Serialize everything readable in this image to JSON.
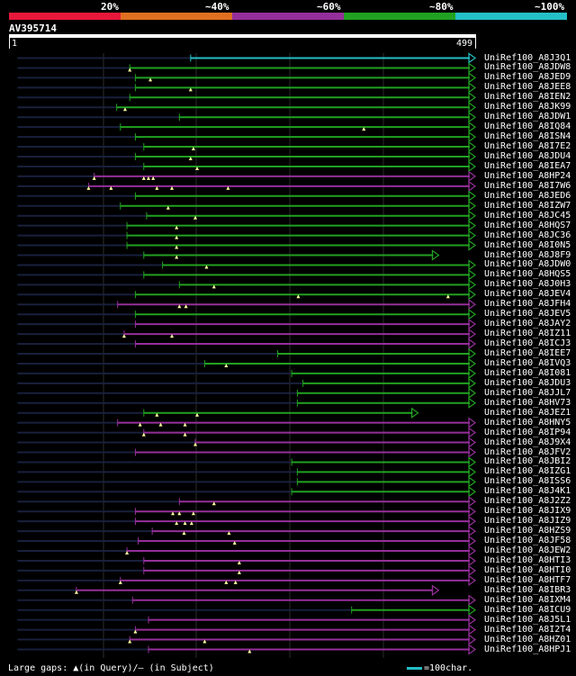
{
  "identity_scale": [
    {
      "label": "20%",
      "color": "#e8183a"
    },
    {
      "label": "~40%",
      "color": "#e07020"
    },
    {
      "label": "~60%",
      "color": "#952f9a"
    },
    {
      "label": "~80%",
      "color": "#21a121"
    },
    {
      "label": "~100%",
      "color": "#24bfc7"
    }
  ],
  "query": {
    "id": "AV395714",
    "start": "1",
    "end": "499"
  },
  "colors": {
    "cyan": "#24bfc7",
    "green": "#21a121",
    "purple": "#952f9a",
    "faint": "#18203c",
    "grid": "#2d2d2d"
  },
  "legend": {
    "text": "Large gaps: ▲(in Query)/― (in Subject)",
    "scale_text": "=100char."
  },
  "hits": [
    {
      "label": "UniRef100_A8J3Q1",
      "color": "cyan",
      "start": 195,
      "end": 499,
      "pre": 10,
      "gaps": []
    },
    {
      "label": "UniRef100_A8JDW8",
      "color": "green",
      "start": 130,
      "end": 499,
      "pre": 10,
      "gaps": [
        130
      ]
    },
    {
      "label": "UniRef100_A8JED9",
      "color": "green",
      "start": 136,
      "end": 499,
      "pre": 10,
      "gaps": [
        152
      ]
    },
    {
      "label": "UniRef100_A8JEE8",
      "color": "green",
      "start": 136,
      "end": 499,
      "pre": 10,
      "gaps": [
        195
      ]
    },
    {
      "label": "UniRef100_A8IEN2",
      "color": "green",
      "start": 130,
      "end": 499,
      "pre": 10,
      "gaps": []
    },
    {
      "label": "UniRef100_A8JK99",
      "color": "green",
      "start": 116,
      "end": 499,
      "pre": 10,
      "gaps": [
        125
      ]
    },
    {
      "label": "UniRef100_A8JDW1",
      "color": "green",
      "start": 183,
      "end": 499,
      "pre": 10,
      "gaps": []
    },
    {
      "label": "UniRef100_A8IQ84",
      "color": "green",
      "start": 120,
      "end": 499,
      "pre": 10,
      "gaps": [
        380
      ]
    },
    {
      "label": "UniRef100_A8ISN4",
      "color": "green",
      "start": 136,
      "end": 499,
      "pre": 10,
      "gaps": []
    },
    {
      "label": "UniRef100_A8I7E2",
      "color": "green",
      "start": 145,
      "end": 499,
      "pre": 10,
      "gaps": [
        198
      ]
    },
    {
      "label": "UniRef100_A8JDU4",
      "color": "green",
      "start": 136,
      "end": 499,
      "pre": 10,
      "gaps": [
        195
      ]
    },
    {
      "label": "UniRef100_A8IEA7",
      "color": "green",
      "start": 145,
      "end": 499,
      "pre": 10,
      "gaps": [
        202
      ]
    },
    {
      "label": "UniRef100_A8HP24",
      "color": "purple",
      "start": 92,
      "end": 499,
      "pre": 10,
      "gaps": [
        92,
        145,
        150,
        155
      ]
    },
    {
      "label": "UniRef100_A8I7W6",
      "color": "purple",
      "start": 86,
      "end": 499,
      "pre": 10,
      "gaps": [
        86,
        110,
        159,
        175,
        235
      ]
    },
    {
      "label": "UniRef100_A8JED6",
      "color": "green",
      "start": 136,
      "end": 499,
      "pre": 10,
      "gaps": []
    },
    {
      "label": "UniRef100_A8IZW7",
      "color": "green",
      "start": 120,
      "end": 499,
      "pre": 10,
      "gaps": [
        171
      ]
    },
    {
      "label": "UniRef100_A8JC45",
      "color": "green",
      "start": 148,
      "end": 499,
      "pre": 10,
      "gaps": [
        200
      ]
    },
    {
      "label": "UniRef100_A8HQS7",
      "color": "green",
      "start": 127,
      "end": 499,
      "pre": 10,
      "gaps": [
        180
      ]
    },
    {
      "label": "UniRef100_A8JC36",
      "color": "green",
      "start": 127,
      "end": 499,
      "pre": 10,
      "gaps": [
        180
      ]
    },
    {
      "label": "UniRef100_A8I0N5",
      "color": "green",
      "start": 127,
      "end": 499,
      "pre": 10,
      "gaps": [
        180
      ]
    },
    {
      "label": "UniRef100_A8J8F9",
      "color": "green",
      "start": 145,
      "end": 460,
      "pre": 10,
      "gaps": [
        180
      ]
    },
    {
      "label": "UniRef100_A8JDW0",
      "color": "green",
      "start": 165,
      "end": 499,
      "pre": 10,
      "gaps": [
        212
      ]
    },
    {
      "label": "UniRef100_A8HQS5",
      "color": "green",
      "start": 145,
      "end": 499,
      "pre": 10,
      "gaps": []
    },
    {
      "label": "UniRef100_A8J0H3",
      "color": "green",
      "start": 183,
      "end": 499,
      "pre": 10,
      "gaps": [
        220
      ]
    },
    {
      "label": "UniRef100_A8JEV4",
      "color": "green",
      "start": 136,
      "end": 499,
      "pre": 10,
      "gaps": [
        310,
        470
      ]
    },
    {
      "label": "UniRef100_A8JFH4",
      "color": "purple",
      "start": 117,
      "end": 499,
      "pre": 10,
      "gaps": [
        183,
        190
      ]
    },
    {
      "label": "UniRef100_A8JEV5",
      "color": "green",
      "start": 136,
      "end": 499,
      "pre": 10,
      "gaps": []
    },
    {
      "label": "UniRef100_A8JAY2",
      "color": "purple",
      "start": 136,
      "end": 499,
      "pre": 10,
      "gaps": []
    },
    {
      "label": "UniRef100_A8IZ11",
      "color": "purple",
      "start": 124,
      "end": 499,
      "pre": 10,
      "gaps": [
        124,
        175
      ]
    },
    {
      "label": "UniRef100_A8ICJ3",
      "color": "purple",
      "start": 136,
      "end": 499,
      "pre": 10,
      "gaps": []
    },
    {
      "label": "UniRef100_A8IEE7",
      "color": "green",
      "start": 288,
      "end": 499,
      "pre": 10,
      "gaps": []
    },
    {
      "label": "UniRef100_A8IVQ3",
      "color": "green",
      "start": 210,
      "end": 499,
      "pre": 10,
      "gaps": [
        233
      ]
    },
    {
      "label": "UniRef100_A8I081",
      "color": "green",
      "start": 303,
      "end": 499,
      "pre": 10,
      "gaps": []
    },
    {
      "label": "UniRef100_A8JDU3",
      "color": "green",
      "start": 315,
      "end": 499,
      "pre": 10,
      "gaps": []
    },
    {
      "label": "UniRef100_A8JJL7",
      "color": "green",
      "start": 309,
      "end": 499,
      "pre": 10,
      "gaps": []
    },
    {
      "label": "UniRef100_A8HV73",
      "color": "green",
      "start": 309,
      "end": 499,
      "pre": 10,
      "gaps": []
    },
    {
      "label": "UniRef100_A8JEZ1",
      "color": "green",
      "start": 145,
      "end": 438,
      "pre": 10,
      "gaps": [
        159,
        202
      ]
    },
    {
      "label": "UniRef100_A8HNY5",
      "color": "purple",
      "start": 117,
      "end": 499,
      "pre": 10,
      "gaps": [
        141,
        163,
        189
      ]
    },
    {
      "label": "UniRef100_A8IP94",
      "color": "purple",
      "start": 145,
      "end": 499,
      "pre": 10,
      "gaps": [
        145,
        189
      ]
    },
    {
      "label": "UniRef100_A8J9X4",
      "color": "purple",
      "start": 200,
      "end": 499,
      "pre": 10,
      "gaps": [
        200
      ]
    },
    {
      "label": "UniRef100_A8JFV2",
      "color": "purple",
      "start": 136,
      "end": 499,
      "pre": 10,
      "gaps": []
    },
    {
      "label": "UniRef100_A8JBI2",
      "color": "green",
      "start": 303,
      "end": 499,
      "pre": 10,
      "gaps": []
    },
    {
      "label": "UniRef100_A8IZG1",
      "color": "green",
      "start": 309,
      "end": 499,
      "pre": 10,
      "gaps": []
    },
    {
      "label": "UniRef100_A8ISS6",
      "color": "green",
      "start": 309,
      "end": 499,
      "pre": 10,
      "gaps": []
    },
    {
      "label": "UniRef100_A8J4K1",
      "color": "green",
      "start": 303,
      "end": 499,
      "pre": 10,
      "gaps": []
    },
    {
      "label": "UniRef100_A8J2Z2",
      "color": "purple",
      "start": 183,
      "end": 499,
      "pre": 10,
      "gaps": [
        220
      ]
    },
    {
      "label": "UniRef100_A8JIX9",
      "color": "purple",
      "start": 136,
      "end": 499,
      "pre": 10,
      "gaps": [
        176,
        183,
        198
      ]
    },
    {
      "label": "UniRef100_A8JIZ9",
      "color": "purple",
      "start": 136,
      "end": 499,
      "pre": 10,
      "gaps": [
        180,
        189,
        196
      ]
    },
    {
      "label": "UniRef100_A8HZS9",
      "color": "purple",
      "start": 154,
      "end": 499,
      "pre": 10,
      "gaps": [
        188,
        236
      ]
    },
    {
      "label": "UniRef100_A8JF58",
      "color": "purple",
      "start": 139,
      "end": 499,
      "pre": 10,
      "gaps": [
        242
      ]
    },
    {
      "label": "UniRef100_A8JEW2",
      "color": "purple",
      "start": 127,
      "end": 499,
      "pre": 10,
      "gaps": [
        127
      ]
    },
    {
      "label": "UniRef100_A8HTI3",
      "color": "purple",
      "start": 145,
      "end": 499,
      "pre": 10,
      "gaps": [
        247
      ]
    },
    {
      "label": "UniRef100_A8HTI0",
      "color": "purple",
      "start": 145,
      "end": 499,
      "pre": 10,
      "gaps": [
        247
      ]
    },
    {
      "label": "UniRef100_A8HTF7",
      "color": "purple",
      "start": 120,
      "end": 499,
      "pre": 10,
      "gaps": [
        120,
        233,
        243
      ]
    },
    {
      "label": "UniRef100_A8IBR3",
      "color": "purple",
      "start": 73,
      "end": 460,
      "pre": 10,
      "gaps": [
        73
      ]
    },
    {
      "label": "UniRef100_A8IXM4",
      "color": "purple",
      "start": 133,
      "end": 499,
      "pre": 10,
      "gaps": []
    },
    {
      "label": "UniRef100_A8ICU9",
      "color": "green",
      "start": 367,
      "end": 499,
      "pre": 10,
      "gaps": []
    },
    {
      "label": "UniRef100_A8J5L1",
      "color": "purple",
      "start": 150,
      "end": 499,
      "pre": 10,
      "gaps": []
    },
    {
      "label": "UniRef100_A8I2T4",
      "color": "purple",
      "start": 136,
      "end": 499,
      "pre": 10,
      "gaps": [
        136
      ]
    },
    {
      "label": "UniRef100_A8HZ01",
      "color": "purple",
      "start": 130,
      "end": 499,
      "pre": 10,
      "gaps": [
        130,
        210
      ]
    },
    {
      "label": "UniRef100_A8HPJ1",
      "color": "purple",
      "start": 150,
      "end": 499,
      "pre": 10,
      "gaps": [
        258
      ]
    }
  ]
}
